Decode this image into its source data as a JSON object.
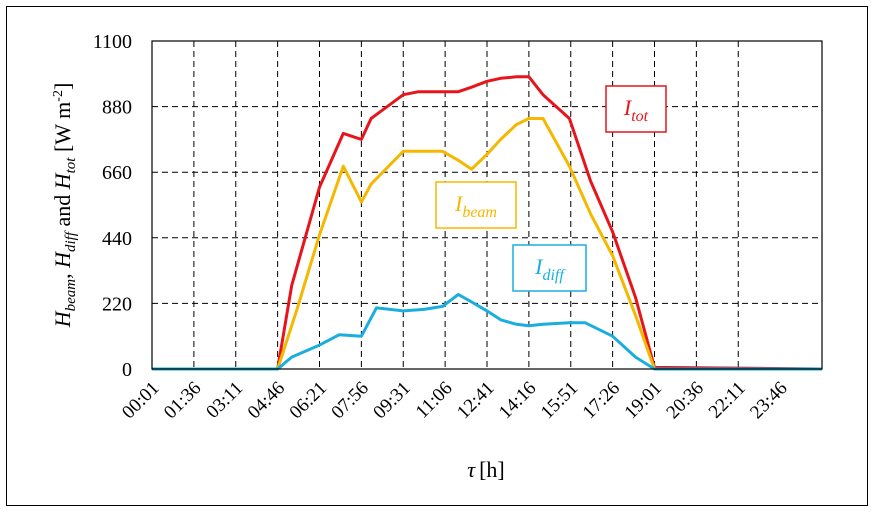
{
  "chart_data": {
    "type": "line",
    "xlabel_symbol": "τ",
    "xlabel_unit": "[h]",
    "ylabel": {
      "H": "H",
      "beam": "beam",
      "diff": "diff",
      "tot": "tot",
      "sep1": ", ",
      "sep2": " and ",
      "unit": " [W m",
      "exp": "-2",
      "close": "]"
    },
    "ylim": [
      0,
      1100
    ],
    "yticks": [
      "0",
      "220",
      "440",
      "660",
      "880",
      "1100"
    ],
    "xlim": [
      0.0167,
      25.35
    ],
    "xtick_labels": [
      "00:01",
      "01:36",
      "03:11",
      "04:46",
      "06:21",
      "07:56",
      "09:31",
      "11:06",
      "12:41",
      "14:16",
      "15:51",
      "17:26",
      "19:01",
      "20:36",
      "22:11",
      "23:46"
    ],
    "grid": true,
    "series": [
      {
        "name": "tot",
        "color": "#e8141b",
        "x": [
          0.0167,
          4.7667,
          5.3,
          6.35,
          7.25,
          7.9333,
          8.3,
          9.5167,
          10.1,
          11.0,
          11.6,
          12.1,
          12.6833,
          13.2,
          13.8,
          14.2667,
          14.8,
          15.8,
          16.6,
          17.4333,
          18.3,
          19.0167,
          19.5,
          25.35
        ],
        "y": [
          0,
          0,
          280,
          610,
          790,
          770,
          840,
          920,
          930,
          930,
          930,
          945,
          965,
          975,
          980,
          980,
          920,
          840,
          630,
          460,
          240,
          5,
          5,
          0
        ]
      },
      {
        "name": "beam",
        "color": "#f5b800",
        "x": [
          0.0167,
          4.7667,
          5.5,
          6.35,
          7.25,
          7.9333,
          8.3,
          9.5167,
          10.1,
          11.0,
          11.6,
          12.1,
          12.6833,
          13.2,
          13.8,
          14.2667,
          14.8,
          15.8,
          16.6,
          17.4333,
          18.3,
          19.0167,
          25.35
        ],
        "y": [
          0,
          0,
          200,
          450,
          680,
          560,
          620,
          730,
          730,
          730,
          700,
          670,
          720,
          770,
          820,
          840,
          840,
          680,
          520,
          380,
          180,
          0,
          0
        ]
      },
      {
        "name": "diff",
        "color": "#1aaedf",
        "x": [
          0.0167,
          4.7667,
          5.3,
          6.35,
          7.1,
          7.9333,
          8.5,
          9.5167,
          10.3,
          11.0,
          11.6,
          12.1,
          12.6833,
          13.2,
          13.8,
          14.2667,
          14.8,
          15.8,
          16.4,
          17.4333,
          18.3,
          19.0167,
          25.35
        ],
        "y": [
          0,
          0,
          40,
          80,
          115,
          110,
          205,
          195,
          200,
          210,
          250,
          225,
          195,
          165,
          150,
          145,
          150,
          155,
          155,
          110,
          40,
          0,
          0
        ]
      }
    ],
    "annotations": [
      {
        "series": "tot",
        "sym": "I",
        "sub": "tot",
        "color": "#e8141b"
      },
      {
        "series": "beam",
        "sym": "I",
        "sub": "beam",
        "color": "#f5b800"
      },
      {
        "series": "diff",
        "sym": "I",
        "sub": "diff",
        "color": "#1aaedf"
      }
    ]
  }
}
